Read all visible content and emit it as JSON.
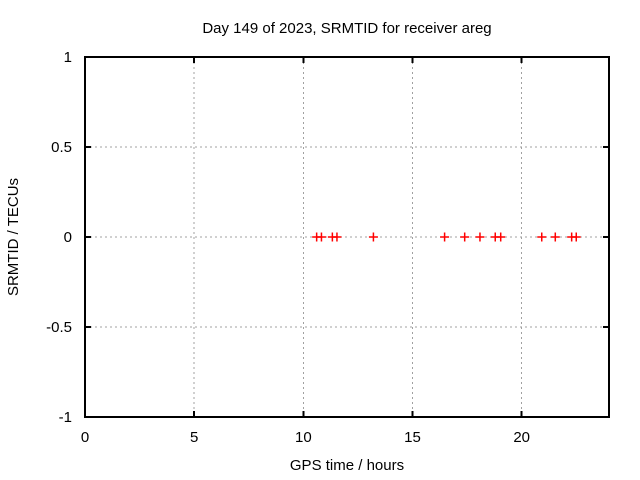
{
  "chart_data": {
    "type": "scatter",
    "title": "Day 149 of 2023, SRMTID for receiver areg",
    "xlabel": "GPS time / hours",
    "ylabel": "SRMTID / TECUs",
    "xlim": [
      0,
      24
    ],
    "ylim": [
      -1,
      1
    ],
    "xticks": [
      0,
      5,
      10,
      15,
      20
    ],
    "yticks": [
      -1,
      -0.5,
      0,
      0.5,
      1
    ],
    "grid": true,
    "legend_position": "none",
    "series": [
      {
        "name": "SRMTID",
        "marker": "plus",
        "color": "#ff0000",
        "points": [
          {
            "x": 10.61,
            "y": 0
          },
          {
            "x": 10.83,
            "y": 0
          },
          {
            "x": 11.33,
            "y": 0
          },
          {
            "x": 11.54,
            "y": 0
          },
          {
            "x": 13.21,
            "y": 0
          },
          {
            "x": 16.47,
            "y": 0
          },
          {
            "x": 17.39,
            "y": 0
          },
          {
            "x": 18.09,
            "y": 0
          },
          {
            "x": 18.79,
            "y": 0
          },
          {
            "x": 19.04,
            "y": 0
          },
          {
            "x": 20.92,
            "y": 0
          },
          {
            "x": 21.54,
            "y": 0
          },
          {
            "x": 22.29,
            "y": 0
          },
          {
            "x": 22.5,
            "y": 0
          }
        ]
      }
    ],
    "colors": {
      "background": "#ffffff",
      "border": "#000000",
      "grid": "#a0a0a0",
      "text": "#000000",
      "marker": "#ff0000"
    }
  }
}
